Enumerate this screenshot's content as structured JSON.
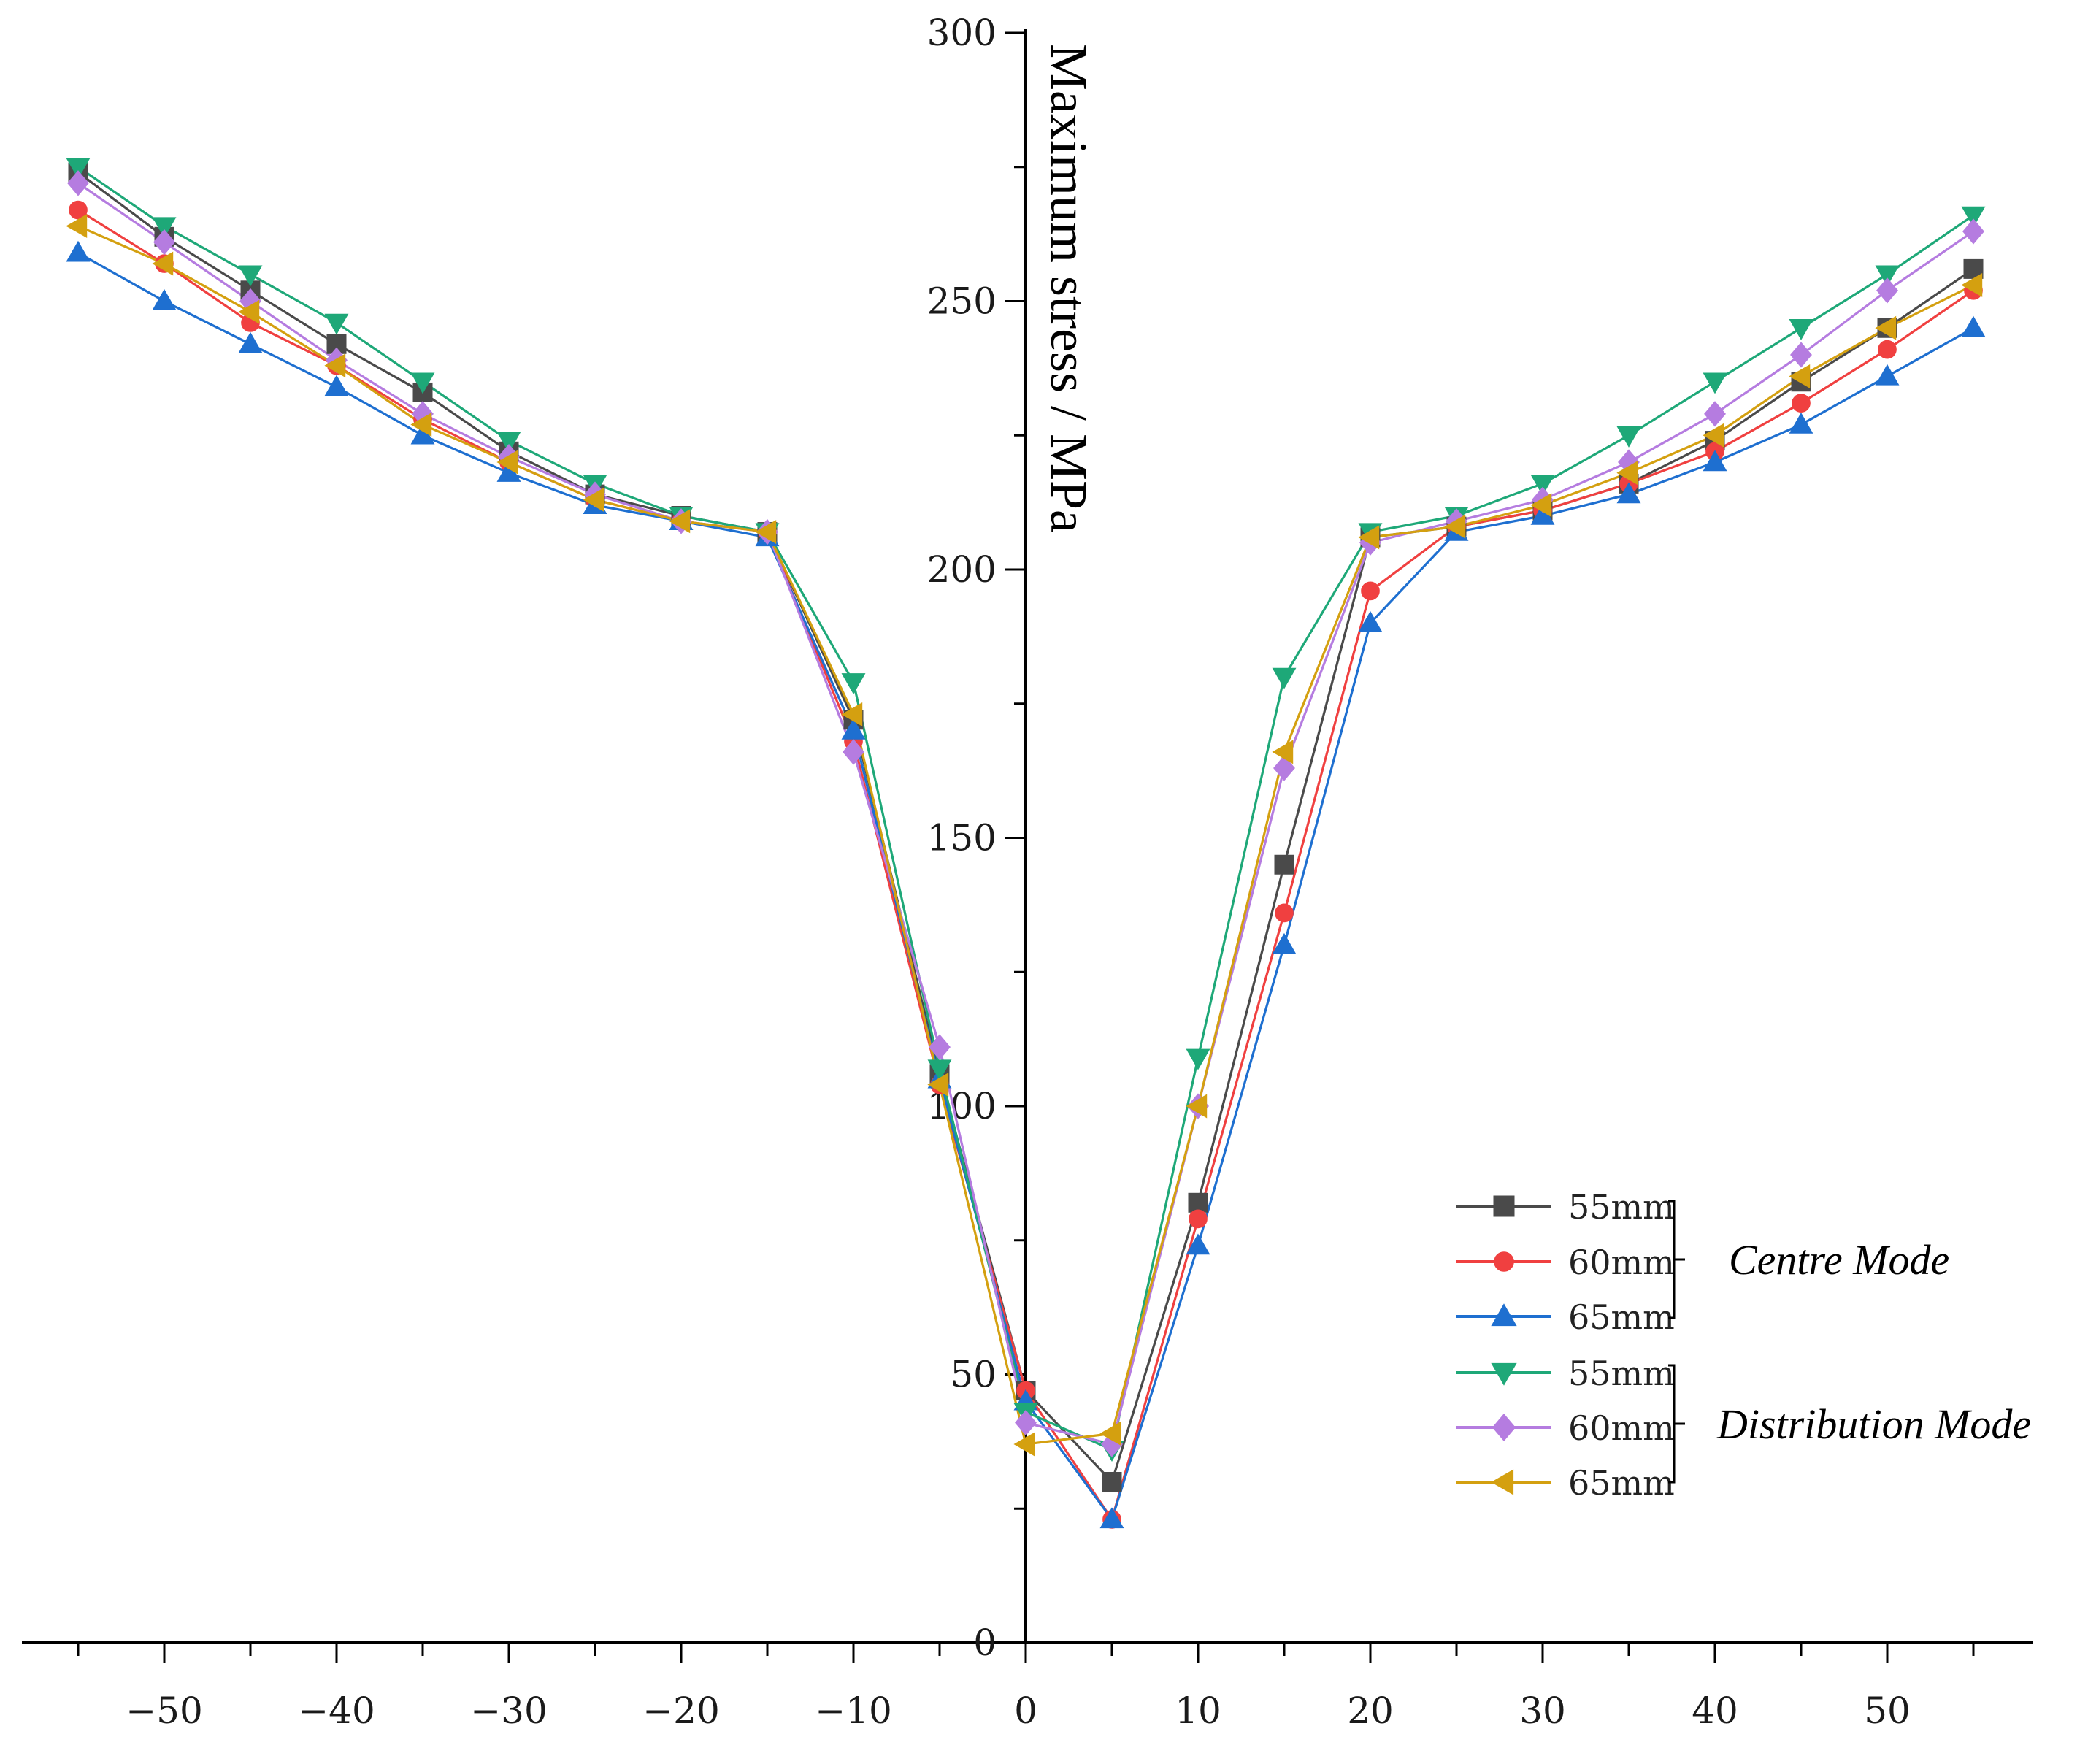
{
  "chart_data": {
    "type": "line",
    "title": "",
    "xlabel": "",
    "ylabel": "Maximum stress / MPa",
    "xlim": [
      -57,
      58
    ],
    "ylim": [
      0,
      300
    ],
    "grid": false,
    "x_ticks": [
      -50,
      -40,
      -30,
      -20,
      -10,
      0,
      10,
      20,
      30,
      40,
      50
    ],
    "x_tick_labels": [
      "−50",
      "−40",
      "−30",
      "−20",
      "−10",
      "0",
      "10",
      "20",
      "30",
      "40",
      "50"
    ],
    "y_ticks": [
      0,
      50,
      100,
      150,
      200,
      250,
      300
    ],
    "y_tick_labels": [
      "0",
      "50",
      "100",
      "150",
      "200",
      "250",
      "300"
    ],
    "x": [
      -55,
      -50,
      -45,
      -40,
      -35,
      -30,
      -25,
      -20,
      -15,
      -10,
      -5,
      0,
      5,
      10,
      15,
      20,
      25,
      30,
      35,
      40,
      45,
      50,
      55
    ],
    "legend_groups": [
      {
        "label": "Centre Mode",
        "series_indices": [
          0,
          1,
          2
        ]
      },
      {
        "label": "Distribution Mode",
        "series_indices": [
          3,
          4,
          5
        ]
      }
    ],
    "series": [
      {
        "name": "55mm",
        "group": "Centre Mode",
        "marker": "square",
        "color": "#4a4a4a",
        "values": [
          274,
          262,
          252,
          242,
          233,
          222,
          214,
          210,
          207,
          172,
          106,
          47,
          30,
          82,
          145,
          206,
          208,
          211,
          216,
          224,
          235,
          245,
          256
        ]
      },
      {
        "name": "60mm",
        "group": "Centre Mode",
        "marker": "circle",
        "color": "#f04040",
        "values": [
          267,
          257,
          246,
          238,
          228,
          220,
          213,
          209,
          207,
          168,
          104,
          47,
          23,
          79,
          136,
          196,
          208,
          211,
          216,
          222,
          231,
          241,
          252
        ]
      },
      {
        "name": "65mm",
        "group": "Centre Mode",
        "marker": "triangle-up",
        "color": "#1e6fd0",
        "values": [
          259,
          250,
          242,
          234,
          225,
          218,
          212,
          209,
          206,
          170,
          105,
          45,
          23,
          74,
          130,
          190,
          207,
          210,
          214,
          220,
          227,
          236,
          245
        ]
      },
      {
        "name": "55mm",
        "group": "Distribution Mode",
        "marker": "triangle-down",
        "color": "#1ea878",
        "values": [
          275,
          264,
          255,
          246,
          235,
          224,
          216,
          210,
          207,
          179,
          107,
          43,
          36,
          109,
          180,
          207,
          210,
          216,
          225,
          235,
          245,
          255,
          266
        ]
      },
      {
        "name": "60mm",
        "group": "Distribution Mode",
        "marker": "diamond",
        "color": "#b57ce0",
        "values": [
          272,
          261,
          250,
          239,
          229,
          221,
          214,
          209,
          207,
          166,
          111,
          41,
          37,
          100,
          163,
          205,
          209,
          213,
          220,
          229,
          240,
          252,
          263
        ]
      },
      {
        "name": "65mm",
        "group": "Distribution Mode",
        "marker": "triangle-left",
        "color": "#d4a010",
        "values": [
          264,
          257,
          248,
          238,
          227,
          220,
          213,
          209,
          207,
          173,
          104,
          37,
          39,
          100,
          166,
          206,
          208,
          212,
          218,
          225,
          236,
          245,
          253
        ]
      }
    ]
  }
}
